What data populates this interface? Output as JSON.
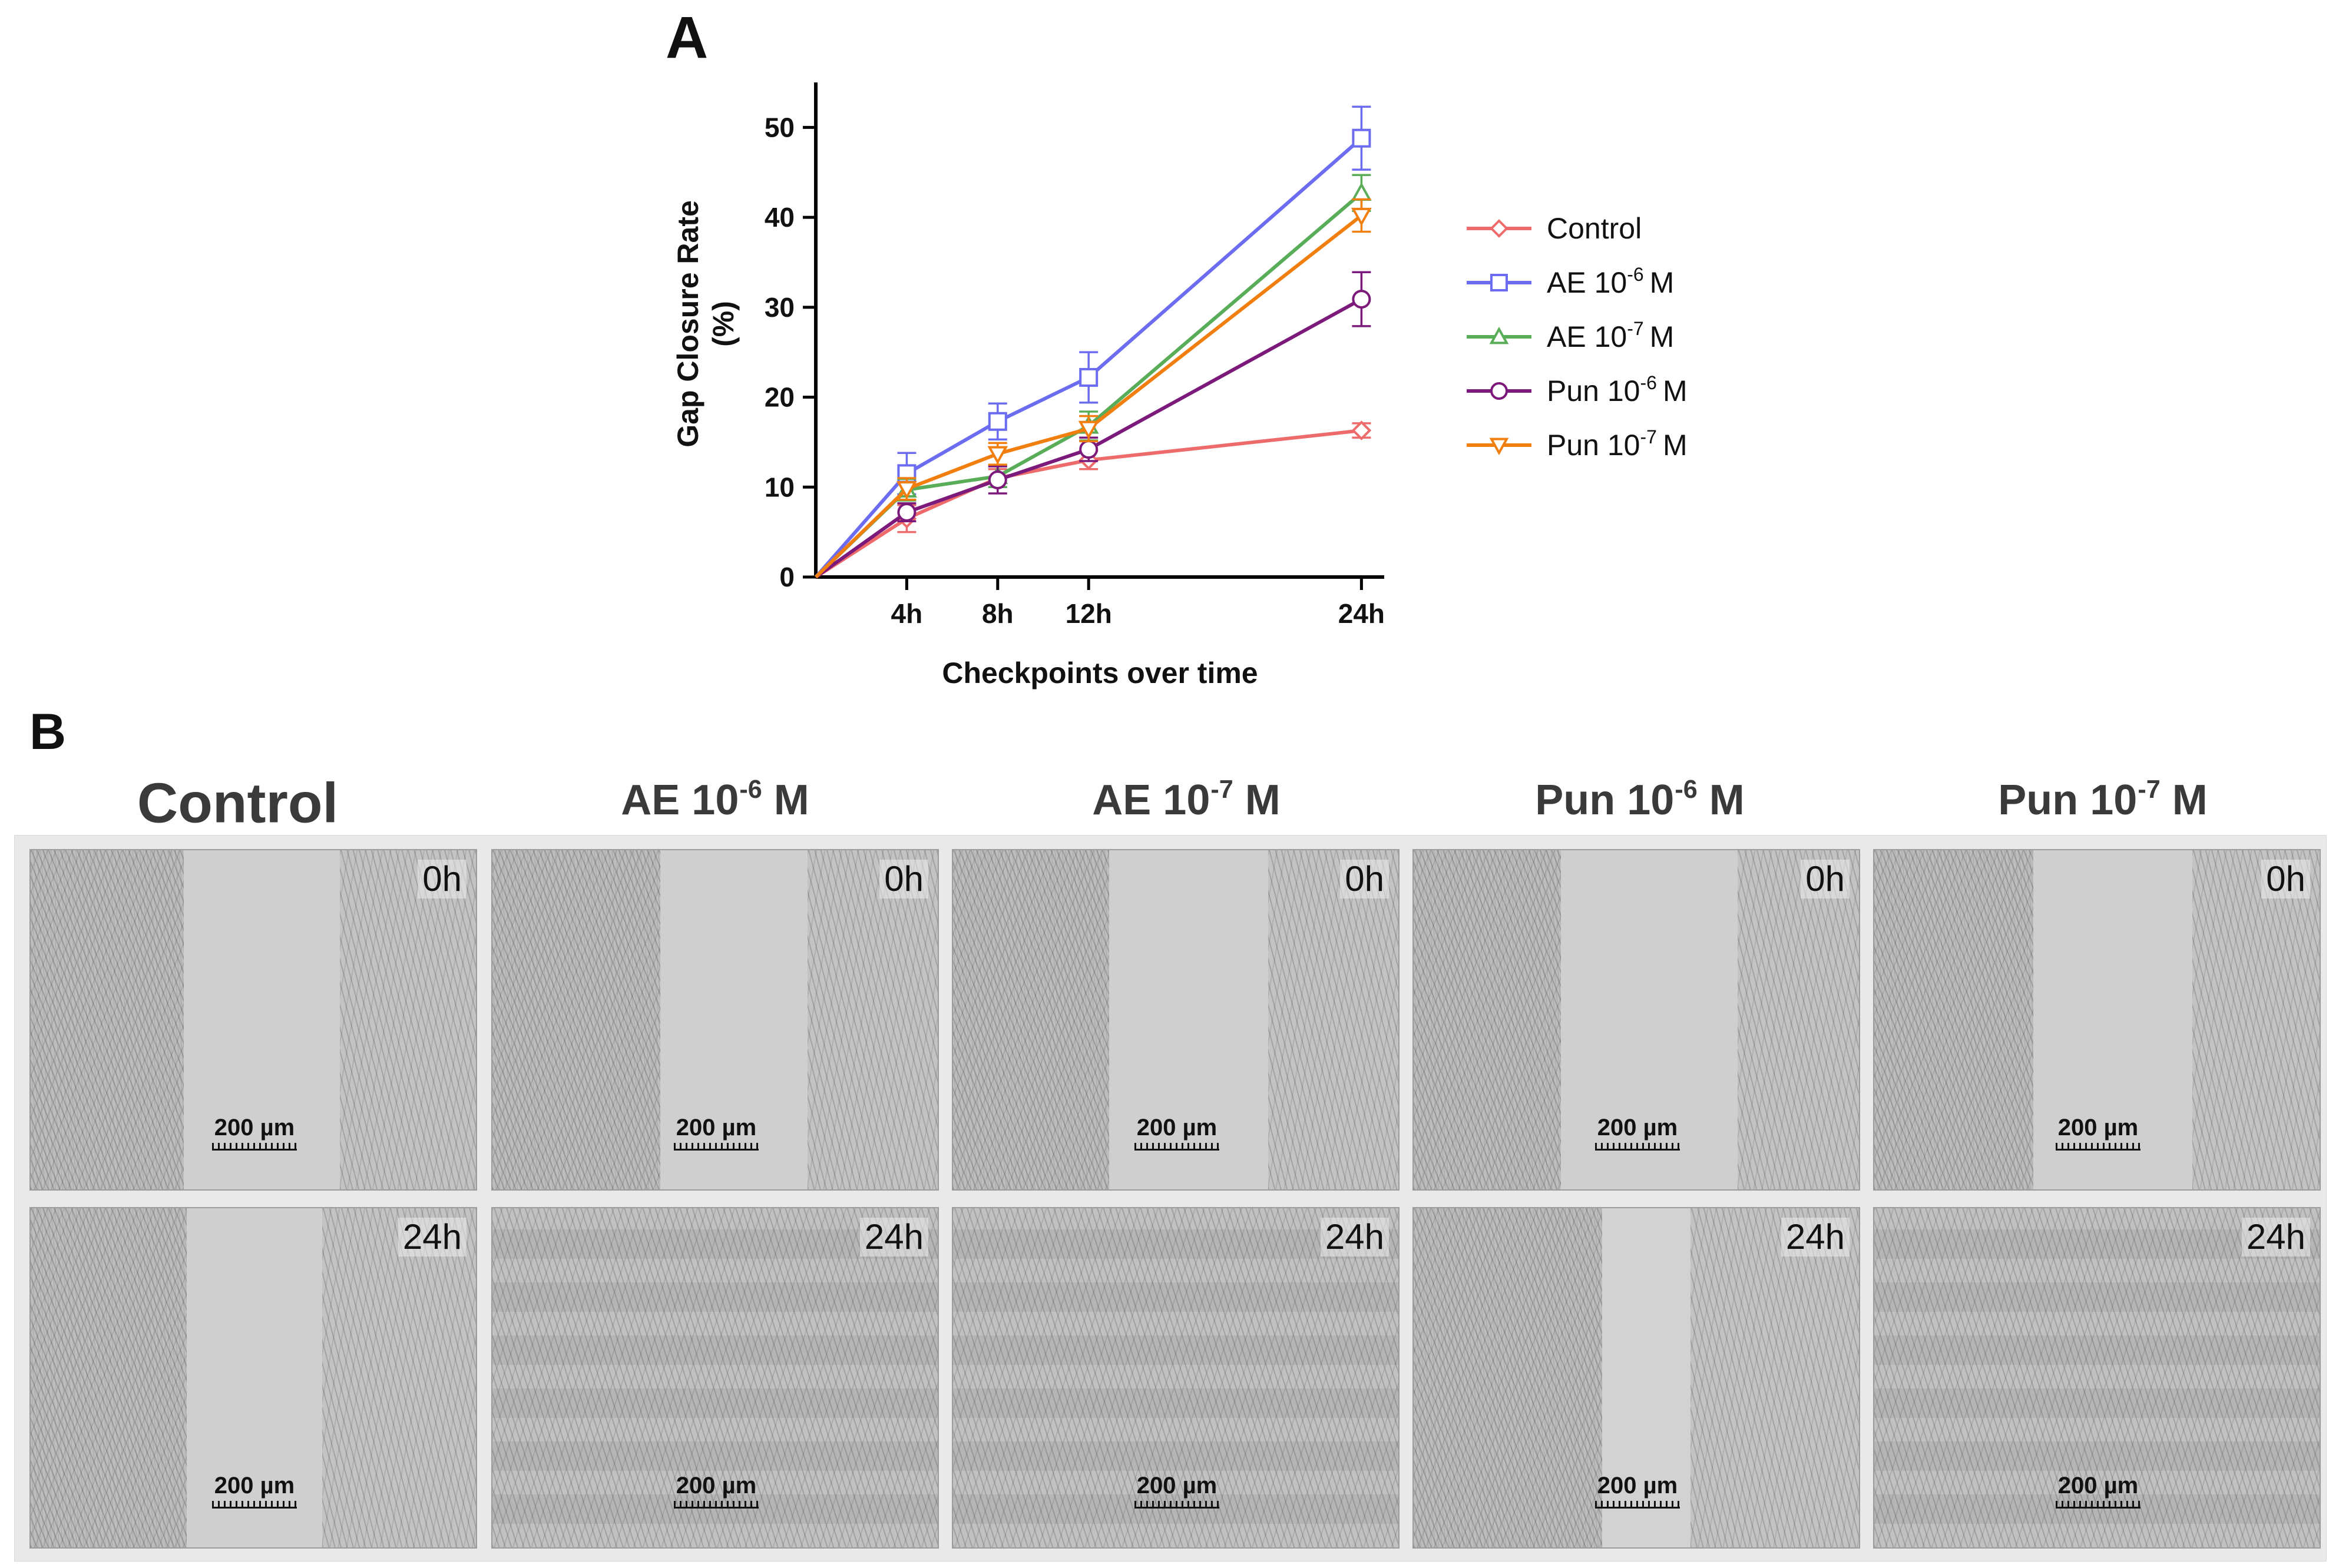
{
  "panels": {
    "a_label": "A",
    "b_label": "B"
  },
  "chart_data": {
    "type": "line",
    "title": "",
    "ylabel_line1": "Gap Closure Rate",
    "ylabel_line2": "(%)",
    "xlabel": "Checkpoints over time",
    "x": [
      0,
      4,
      8,
      12,
      24
    ],
    "x_tick_values": [
      4,
      8,
      12,
      24
    ],
    "x_tick_labels": [
      "4h",
      "8h",
      "12h",
      "24h"
    ],
    "ylim": [
      0,
      55
    ],
    "xlim": [
      0,
      25
    ],
    "y_ticks": [
      0,
      10,
      20,
      30,
      40,
      50
    ],
    "legend_position": "right",
    "series": [
      {
        "name": "Control",
        "legend_base": "Control",
        "legend_sup": "",
        "legend_suffix": "",
        "color": "#ee6b6b",
        "marker": "diamond",
        "values": [
          0,
          6.5,
          11,
          13,
          16.3
        ],
        "errors": [
          0,
          1.5,
          1.0,
          1.0,
          0.8
        ]
      },
      {
        "name": "AE 10-6 M",
        "legend_base": "AE 10",
        "legend_sup": "-6",
        "legend_suffix": "M",
        "color": "#6c6cf0",
        "marker": "square",
        "values": [
          0,
          11.5,
          17.3,
          22.2,
          48.8
        ],
        "errors": [
          0,
          2.3,
          2.0,
          2.8,
          3.5
        ]
      },
      {
        "name": "AE 10-7 M",
        "legend_base": "AE 10",
        "legend_sup": "-7",
        "legend_suffix": "M",
        "color": "#59ad59",
        "marker": "triangle",
        "values": [
          0,
          9.7,
          11.2,
          16.8,
          42.7
        ],
        "errors": [
          0,
          1.2,
          1.2,
          1.6,
          2.0
        ]
      },
      {
        "name": "Pun 10-6 M",
        "legend_base": "Pun 10",
        "legend_sup": "-6",
        "legend_suffix": "M",
        "color": "#7c1a7c",
        "marker": "circle",
        "values": [
          0,
          7.2,
          10.8,
          14.2,
          30.9
        ],
        "errors": [
          0,
          1.0,
          1.5,
          1.3,
          3.0
        ]
      },
      {
        "name": "Pun 10-7 M",
        "legend_base": "Pun 10",
        "legend_sup": "-7",
        "legend_suffix": "M",
        "color": "#f07f10",
        "marker": "triangle-down",
        "values": [
          0,
          9.8,
          13.7,
          16.5,
          40.2
        ],
        "errors": [
          0,
          1.2,
          1.2,
          1.4,
          1.8
        ]
      }
    ]
  },
  "microscopy": {
    "columns": [
      {
        "base": "Control",
        "sup": "",
        "suffix": ""
      },
      {
        "base": "AE 10",
        "sup": "-6",
        "suffix": " M"
      },
      {
        "base": "AE 10",
        "sup": "-7",
        "suffix": " M"
      },
      {
        "base": "Pun 10",
        "sup": "-6",
        "suffix": " M"
      },
      {
        "base": "Pun 10",
        "sup": "-7",
        "suffix": " M"
      }
    ],
    "time_top": "0h",
    "time_bottom": "24h",
    "scale_label": "200 µm"
  }
}
